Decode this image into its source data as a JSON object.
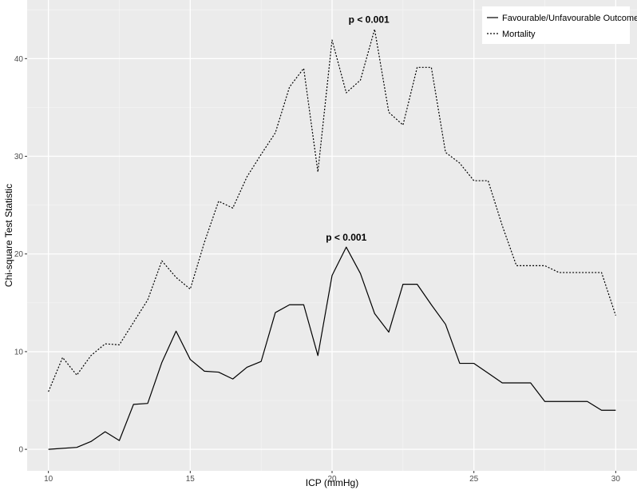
{
  "chart_data": {
    "type": "line",
    "xlabel": "ICP (mmHg)",
    "ylabel": "Chi-square Test Statistic",
    "xlim": [
      9.25,
      30.75
    ],
    "ylim": [
      -2.2,
      46
    ],
    "xticks": [
      10,
      15,
      20,
      25,
      30
    ],
    "yticks": [
      0,
      10,
      20,
      30,
      40
    ],
    "grid": true,
    "legend_position": "top-right",
    "background": "#ebebeb",
    "series": [
      {
        "name": "Favourable/Unfavourable Outcome",
        "line_style": "solid",
        "color": "#000000",
        "x": [
          10,
          10.5,
          11,
          11.5,
          12,
          12.5,
          13,
          13.5,
          14,
          14.5,
          15,
          15.5,
          16,
          16.5,
          17,
          17.5,
          18,
          18.5,
          19,
          19.5,
          20,
          20.5,
          21,
          21.5,
          22,
          22.5,
          23,
          23.5,
          24,
          24.5,
          25,
          25.5,
          26,
          26.5,
          27,
          27.5,
          28,
          28.5,
          29,
          29.5,
          30
        ],
        "y": [
          0.0,
          0.1,
          0.2,
          0.8,
          1.8,
          0.9,
          4.6,
          4.7,
          8.9,
          12.1,
          9.2,
          8.0,
          7.9,
          7.2,
          8.4,
          9.0,
          14.0,
          14.8,
          14.8,
          9.6,
          17.8,
          20.7,
          18.0,
          13.9,
          12.0,
          16.9,
          16.9,
          14.8,
          12.8,
          8.8,
          8.8,
          7.8,
          6.8,
          6.8,
          6.8,
          4.9,
          4.9,
          4.9,
          4.9,
          4.0,
          4.0
        ]
      },
      {
        "name": "Mortality",
        "line_style": "dotted",
        "color": "#000000",
        "x": [
          10,
          10.5,
          11,
          11.5,
          12,
          12.5,
          13,
          13.5,
          14,
          14.5,
          15,
          15.5,
          16,
          16.5,
          17,
          17.5,
          18,
          18.5,
          19,
          19.5,
          20,
          20.5,
          21,
          21.5,
          22,
          22.5,
          23,
          23.5,
          24,
          24.5,
          25,
          25.5,
          26,
          26.5,
          27,
          27.5,
          28,
          28.5,
          29,
          29.5,
          30
        ],
        "y": [
          5.9,
          9.4,
          7.6,
          9.6,
          10.8,
          10.7,
          13.0,
          15.3,
          19.3,
          17.6,
          16.4,
          21.2,
          25.4,
          24.7,
          27.9,
          30.2,
          32.4,
          37.1,
          39.0,
          28.4,
          41.9,
          36.5,
          37.8,
          43.0,
          34.5,
          33.2,
          39.1,
          39.1,
          30.4,
          29.3,
          27.5,
          27.5,
          22.9,
          18.8,
          18.8,
          18.8,
          18.1,
          18.1,
          18.1,
          18.1,
          13.7
        ]
      }
    ],
    "annotations": [
      {
        "text": "p < 0.001",
        "x": 21.3,
        "y": 43.0
      },
      {
        "text": "p < 0.001",
        "x": 20.5,
        "y": 20.7
      }
    ]
  }
}
